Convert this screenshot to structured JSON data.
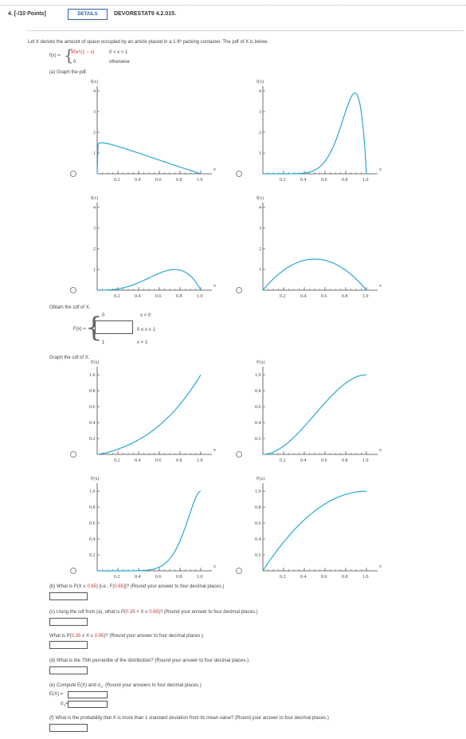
{
  "header": {
    "question_number": "4.",
    "points": "[-/10 Points]",
    "details_label": "DETAILS",
    "question_id": "DEVORESTAT9 4.2.015."
  },
  "intro": {
    "text": "Let X denote the amount of space occupied by an article placed in a 1-ft³ packing container. The pdf of X is below.",
    "pdf_lhs": "f(x) =",
    "pdf_case1_expr": "90x⁸(1 − x)",
    "pdf_case1_cond": "0 < x < 1",
    "pdf_case2_expr": "0",
    "pdf_case2_cond": "otherwise"
  },
  "part_a": {
    "prompt": "(a) Graph the pdf.",
    "obtain_cdf": "Obtain the cdf of X.",
    "cdf_lhs": "F(x) =",
    "cdf_case1_val": "0",
    "cdf_case1_cond": "x < 0",
    "cdf_case2_cond": "0 ≤ x ≤ 1",
    "cdf_case3_val": "1",
    "cdf_case3_cond": "x > 1",
    "graph_cdf": "Graph the cdf of X."
  },
  "pdf_plots": [
    {
      "ylabel": "f(x)",
      "xlabel": "x",
      "yticks": [
        "1",
        "2",
        "3",
        "4"
      ],
      "xticks": [
        "0.2",
        "0.4",
        "0.6",
        "0.8",
        "1.0"
      ]
    },
    {
      "ylabel": "f(x)",
      "xlabel": "x",
      "yticks": [
        "1",
        "2",
        "3",
        "4"
      ],
      "xticks": [
        "0.2",
        "0.4",
        "0.6",
        "0.8",
        "1.0"
      ]
    },
    {
      "ylabel": "f(x)",
      "xlabel": "x",
      "yticks": [
        "1",
        "2",
        "3",
        "4"
      ],
      "xticks": [
        "0.2",
        "0.4",
        "0.6",
        "0.8",
        "1.0"
      ]
    },
    {
      "ylabel": "f(x)",
      "xlabel": "x",
      "yticks": [
        "1",
        "2",
        "3",
        "4"
      ],
      "xticks": [
        "0.2",
        "0.4",
        "0.6",
        "0.8",
        "1.0"
      ]
    }
  ],
  "cdf_plots": [
    {
      "ylabel": "F(x)",
      "xlabel": "x",
      "yticks": [
        "0.2",
        "0.4",
        "0.6",
        "0.8",
        "1.0"
      ],
      "xticks": [
        "0.2",
        "0.4",
        "0.6",
        "0.8",
        "1.0"
      ]
    },
    {
      "ylabel": "F(x)",
      "xlabel": "x",
      "yticks": [
        "0.2",
        "0.4",
        "0.6",
        "0.8",
        "1.0"
      ],
      "xticks": [
        "0.2",
        "0.4",
        "0.6",
        "0.8",
        "1.0"
      ]
    },
    {
      "ylabel": "F(x)",
      "xlabel": "x",
      "yticks": [
        "0.2",
        "0.4",
        "0.6",
        "0.8",
        "1.0"
      ],
      "xticks": [
        "0.2",
        "0.4",
        "0.6",
        "0.8",
        "1.0"
      ]
    },
    {
      "ylabel": "F(x)",
      "xlabel": "x",
      "yticks": [
        "0.2",
        "0.4",
        "0.6",
        "0.8",
        "1.0"
      ],
      "xticks": [
        "0.2",
        "0.4",
        "0.6",
        "0.8",
        "1.0"
      ]
    }
  ],
  "part_b": {
    "prompt_pre": "(b) What is P(X ≤ ",
    "prompt_red": "0.65",
    "prompt_mid": ") [i.e., F(",
    "prompt_red2": "0.65",
    "prompt_post": ")]? (Round your answer to four decimal places.)"
  },
  "part_c": {
    "prompt_pre": "(c) Using the cdf from (a), what is P(",
    "red1": "0.35",
    "mid": " < X ≤ ",
    "red2": "0.65",
    "post": ")? (Round your answer to four decimal places.)",
    "prompt2_pre": "What is P(",
    "red3": "0.35",
    "mid2": " ≤ X ≤ ",
    "red4": "0.65",
    "post2": ")? (Round your answer to four decimal places.)"
  },
  "part_d": {
    "prompt": "(d) What is the 75th percentile of the distribution? (Round your answer to four decimal places.)"
  },
  "part_e": {
    "prompt": "(e) Compute E(X) and σ",
    "prompt_sub": "X",
    "prompt_post": ". (Round your answers to four decimal places.)",
    "ex_label": "E(X) =",
    "sigma_label": "σ",
    "sigma_sub": "X",
    "sigma_eq": "="
  },
  "part_f": {
    "prompt": "(f) What is the probability that X is more than 1 standard deviation from its mean value? (Round your answer to four decimal places.)"
  },
  "colors": {
    "curve": "#2aa7d8",
    "accent": "#2f62a6",
    "red": "#c8343d"
  }
}
